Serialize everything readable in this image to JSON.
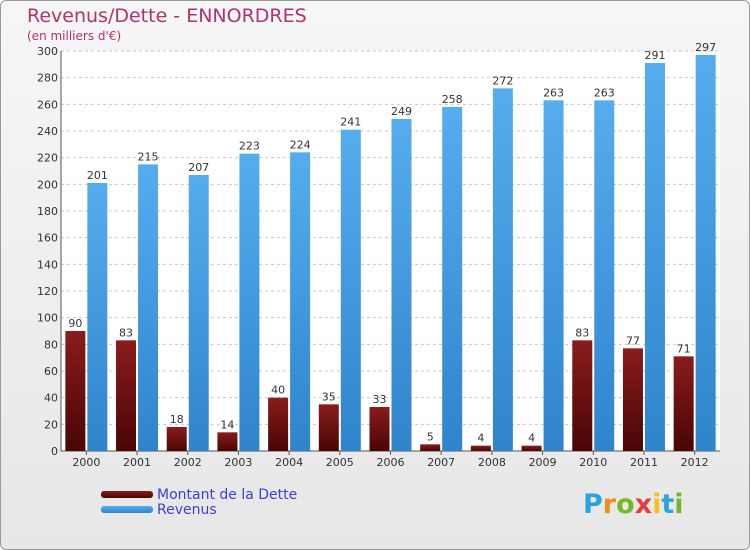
{
  "chart_data": {
    "type": "bar",
    "title": "Revenus/Dette - ENNORDRES",
    "subtitle": "(en milliers d'€)",
    "categories": [
      "2000",
      "2001",
      "2002",
      "2003",
      "2004",
      "2005",
      "2006",
      "2007",
      "2008",
      "2009",
      "2010",
      "2011",
      "2012"
    ],
    "series": [
      {
        "name": "Montant de la Dette",
        "color": "#7a1010",
        "values": [
          90,
          83,
          18,
          14,
          40,
          35,
          33,
          5,
          4,
          4,
          83,
          77,
          71
        ]
      },
      {
        "name": "Revenus",
        "color": "#3d95de",
        "values": [
          201,
          215,
          207,
          223,
          224,
          241,
          249,
          258,
          272,
          263,
          263,
          291,
          297
        ]
      }
    ],
    "ylim": [
      0,
      300
    ],
    "yticks": [
      0,
      20,
      40,
      60,
      80,
      100,
      120,
      140,
      160,
      180,
      200,
      220,
      240,
      260,
      280,
      300
    ],
    "grid": true,
    "legend_position": "bottom-left"
  },
  "brand": {
    "letters": [
      "P",
      "r",
      "o",
      "x",
      "i",
      "t",
      "i"
    ],
    "colors": [
      "#2aa3e0",
      "#f28c1c",
      "#74b72a",
      "#e23d3d",
      "#f2c21c",
      "#2aa3e0",
      "#74b72a"
    ]
  }
}
